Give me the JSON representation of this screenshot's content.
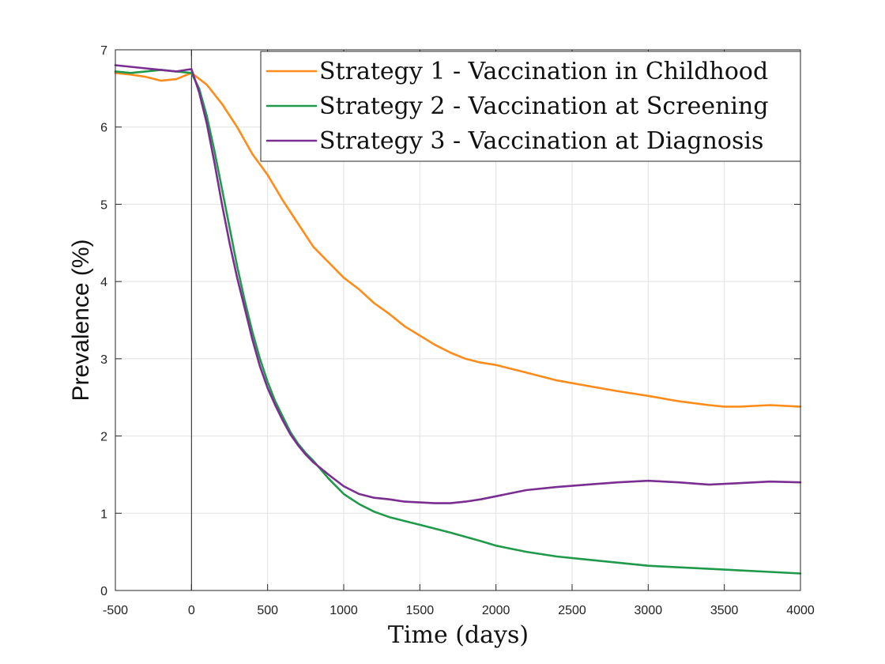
{
  "chart_data": {
    "type": "line",
    "title": "",
    "xlabel": "Time (days)",
    "ylabel": "Prevalence (%)",
    "xlim": [
      -500,
      4000
    ],
    "ylim": [
      0,
      7
    ],
    "xticks": [
      -500,
      0,
      500,
      1000,
      1500,
      2000,
      2500,
      3000,
      3500,
      4000
    ],
    "yticks": [
      0,
      1,
      2,
      3,
      4,
      5,
      6,
      7
    ],
    "grid": true,
    "legend_position": "top-right",
    "vertical_reference_line_x": 0,
    "series": [
      {
        "name": "Strategy 1 - Vaccination in Childhood",
        "color": "#ff8c1a",
        "x": [
          -500,
          -400,
          -300,
          -200,
          -100,
          0,
          100,
          200,
          300,
          400,
          500,
          600,
          700,
          800,
          900,
          1000,
          1100,
          1200,
          1300,
          1400,
          1500,
          1600,
          1700,
          1800,
          1900,
          2000,
          2200,
          2400,
          2600,
          2800,
          3000,
          3200,
          3400,
          3500,
          3600,
          3800,
          4000
        ],
        "y": [
          6.7,
          6.68,
          6.65,
          6.6,
          6.62,
          6.7,
          6.55,
          6.3,
          6.0,
          5.65,
          5.38,
          5.05,
          4.75,
          4.45,
          4.25,
          4.05,
          3.9,
          3.72,
          3.58,
          3.42,
          3.3,
          3.18,
          3.08,
          3.0,
          2.95,
          2.92,
          2.82,
          2.72,
          2.65,
          2.58,
          2.52,
          2.45,
          2.4,
          2.38,
          2.38,
          2.4,
          2.38
        ]
      },
      {
        "name": "Strategy 2 - Vaccination at Screening",
        "color": "#1f9a4a",
        "x": [
          -500,
          -400,
          -300,
          -200,
          -100,
          0,
          50,
          100,
          150,
          200,
          250,
          300,
          350,
          400,
          450,
          500,
          550,
          600,
          650,
          700,
          750,
          800,
          900,
          1000,
          1100,
          1200,
          1300,
          1400,
          1500,
          1700,
          1900,
          2000,
          2200,
          2400,
          2600,
          2800,
          3000,
          3200,
          3400,
          3600,
          3800,
          4000
        ],
        "y": [
          6.72,
          6.7,
          6.72,
          6.74,
          6.72,
          6.7,
          6.5,
          6.15,
          5.7,
          5.2,
          4.7,
          4.2,
          3.75,
          3.35,
          3.0,
          2.7,
          2.45,
          2.25,
          2.05,
          1.9,
          1.78,
          1.68,
          1.45,
          1.25,
          1.12,
          1.02,
          0.95,
          0.9,
          0.85,
          0.75,
          0.64,
          0.58,
          0.5,
          0.44,
          0.4,
          0.36,
          0.32,
          0.3,
          0.28,
          0.26,
          0.24,
          0.22
        ]
      },
      {
        "name": "Strategy 3 - Vaccination at Diagnosis",
        "color": "#7a2e91",
        "x": [
          -500,
          -400,
          -300,
          -200,
          -100,
          0,
          50,
          100,
          150,
          200,
          250,
          300,
          350,
          400,
          450,
          500,
          550,
          600,
          650,
          700,
          750,
          800,
          900,
          1000,
          1100,
          1200,
          1300,
          1400,
          1500,
          1600,
          1700,
          1800,
          1900,
          2000,
          2100,
          2200,
          2400,
          2600,
          2800,
          3000,
          3200,
          3400,
          3600,
          3800,
          4000
        ],
        "y": [
          6.8,
          6.78,
          6.76,
          6.74,
          6.72,
          6.75,
          6.45,
          6.05,
          5.55,
          5.0,
          4.5,
          4.05,
          3.65,
          3.25,
          2.9,
          2.62,
          2.4,
          2.2,
          2.02,
          1.88,
          1.76,
          1.66,
          1.5,
          1.35,
          1.25,
          1.2,
          1.18,
          1.15,
          1.14,
          1.13,
          1.13,
          1.15,
          1.18,
          1.22,
          1.26,
          1.3,
          1.34,
          1.37,
          1.4,
          1.42,
          1.4,
          1.37,
          1.39,
          1.41,
          1.4
        ]
      }
    ]
  }
}
